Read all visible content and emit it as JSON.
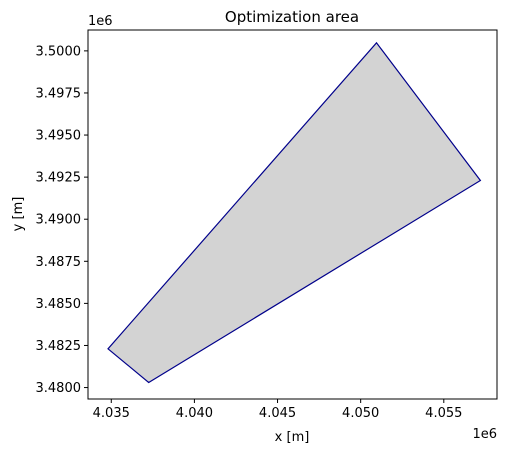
{
  "chart_data": {
    "type": "area",
    "title": "Optimization area",
    "xlabel": "x [m]",
    "ylabel": "y [m]",
    "x_offset_label": "1e6",
    "y_offset_label": "1e6",
    "xlim": [
      4033600,
      4058200
    ],
    "ylim": [
      3479320,
      3501240
    ],
    "x_ticks": [
      4035000,
      4040000,
      4045000,
      4050000,
      4055000
    ],
    "x_tick_labels": [
      "4.035",
      "4.040",
      "4.045",
      "4.050",
      "4.055"
    ],
    "y_ticks": [
      3480000,
      3482500,
      3485000,
      3487500,
      3490000,
      3492500,
      3495000,
      3497500,
      3500000
    ],
    "y_tick_labels": [
      "3.4800",
      "3.4825",
      "3.4850",
      "3.4875",
      "3.4900",
      "3.4925",
      "3.4950",
      "3.4975",
      "3.5000"
    ],
    "grid": false,
    "polygon": {
      "x": [
        4034800,
        4037250,
        4057200,
        4050950,
        4034800
      ],
      "y": [
        3482300,
        3480300,
        3492300,
        3500480,
        3482300
      ],
      "fill_color": "#d3d3d3",
      "edge_color": "#00008b"
    }
  }
}
